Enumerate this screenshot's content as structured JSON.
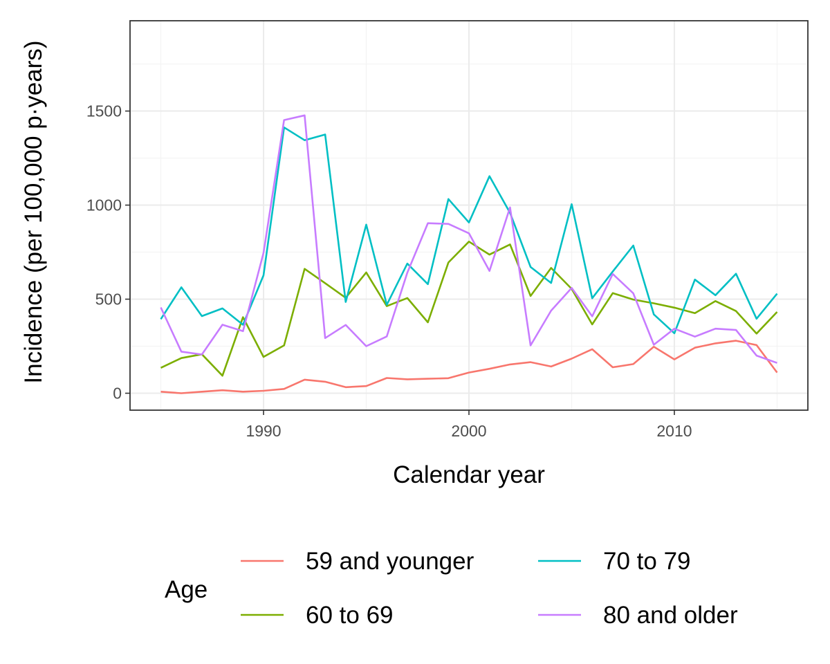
{
  "chart_data": {
    "type": "line",
    "xlabel": "Calendar year",
    "ylabel": "Incidence (per 100,000 p·years)",
    "xlim": [
      1983.5,
      2016.5
    ],
    "ylim": [
      -90,
      1980
    ],
    "x_ticks": [
      1990,
      2000,
      2010
    ],
    "y_ticks": [
      0,
      500,
      1000,
      1500
    ],
    "grid": true,
    "legend": {
      "title": "Age",
      "position": "bottom",
      "columns": 2
    },
    "x": [
      1985,
      1986,
      1987,
      1988,
      1989,
      1990,
      1991,
      1992,
      1993,
      1994,
      1995,
      1996,
      1997,
      1998,
      1999,
      2000,
      2001,
      2002,
      2003,
      2004,
      2005,
      2006,
      2007,
      2008,
      2009,
      2010,
      2011,
      2012,
      2013,
      2014,
      2015
    ],
    "series": [
      {
        "name": "59 and younger",
        "color": "#F8766D",
        "values": [
          8,
          0,
          8,
          16,
          8,
          13,
          23,
          72,
          61,
          32,
          38,
          81,
          74,
          77,
          80,
          110,
          130,
          153,
          165,
          142,
          184,
          234,
          138,
          155,
          247,
          180,
          242,
          265,
          279,
          256,
          110
        ]
      },
      {
        "name": "60 to 69",
        "color": "#7CAE00",
        "values": [
          135,
          187,
          207,
          93,
          404,
          193,
          254,
          661,
          585,
          507,
          642,
          463,
          506,
          377,
          695,
          806,
          737,
          791,
          517,
          666,
          555,
          366,
          532,
          498,
          478,
          455,
          426,
          490,
          437,
          317,
          432
        ]
      },
      {
        "name": "70 to 79",
        "color": "#00BFC4",
        "values": [
          394,
          563,
          410,
          451,
          364,
          627,
          1413,
          1345,
          1375,
          485,
          896,
          470,
          689,
          580,
          1032,
          908,
          1154,
          959,
          671,
          586,
          1005,
          505,
          647,
          785,
          419,
          319,
          604,
          521,
          635,
          396,
          529
        ]
      },
      {
        "name": "80 and older",
        "color": "#C77CFF",
        "values": [
          456,
          221,
          206,
          364,
          330,
          746,
          1452,
          1477,
          293,
          363,
          250,
          302,
          641,
          904,
          900,
          850,
          650,
          988,
          254,
          439,
          560,
          409,
          634,
          531,
          258,
          343,
          301,
          343,
          336,
          200,
          161
        ]
      }
    ]
  }
}
